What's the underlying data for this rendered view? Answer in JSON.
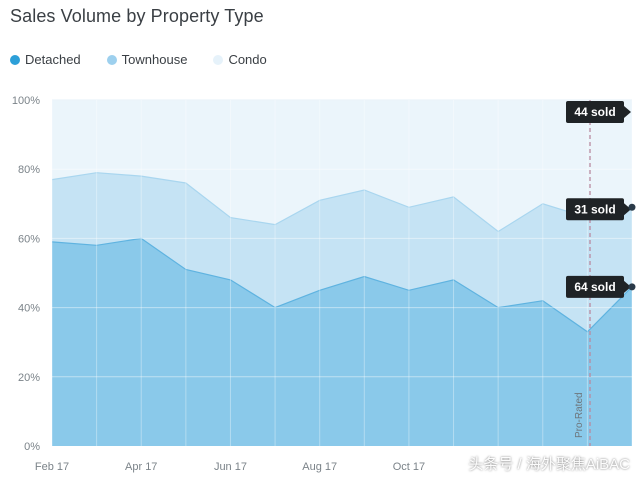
{
  "chart_data": {
    "type": "area",
    "stacked": "percent",
    "title": "Sales Volume by Property Type",
    "x": [
      "Feb 17",
      "Mar 17",
      "Apr 17",
      "May 17",
      "Jun 17",
      "Jul 17",
      "Aug 17",
      "Sep 17",
      "Oct 17",
      "Nov 17",
      "Dec 17",
      "Jan 18",
      "Feb 18",
      "Mar 18"
    ],
    "x_tick_labels": [
      "Feb 17",
      "Apr 17",
      "Jun 17",
      "Aug 17",
      "Oct 17"
    ],
    "y_tick_labels": [
      "0%",
      "20%",
      "40%",
      "60%",
      "80%",
      "100%"
    ],
    "ylim": [
      0,
      100
    ],
    "series": [
      {
        "name": "Detached",
        "color": "#8ac9ea",
        "values": [
          59,
          58,
          60,
          51,
          48,
          40,
          45,
          49,
          45,
          48,
          40,
          42,
          33,
          46
        ]
      },
      {
        "name": "Townhouse",
        "color": "#c5e3f4",
        "values": [
          18,
          21,
          18,
          25,
          18,
          24,
          26,
          25,
          24,
          24,
          22,
          28,
          33,
          23
        ]
      },
      {
        "name": "Condo",
        "color": "#ebf5fb",
        "values": [
          23,
          21,
          22,
          24,
          34,
          36,
          29,
          26,
          31,
          28,
          38,
          30,
          34,
          31
        ]
      }
    ],
    "legend_position": "top-left",
    "annotations": {
      "callouts": [
        "44 sold",
        "31 sold",
        "64 sold"
      ],
      "prorated_label": "Pro-Rated"
    },
    "grid": true
  },
  "legend": {
    "items": [
      {
        "label": "Detached",
        "color": "#2c9fd8"
      },
      {
        "label": "Townhouse",
        "color": "#9dd0ee"
      },
      {
        "label": "Condo",
        "color": "#e6f2fa"
      }
    ]
  },
  "watermark": "头条号 / 海外聚焦AiBAC"
}
